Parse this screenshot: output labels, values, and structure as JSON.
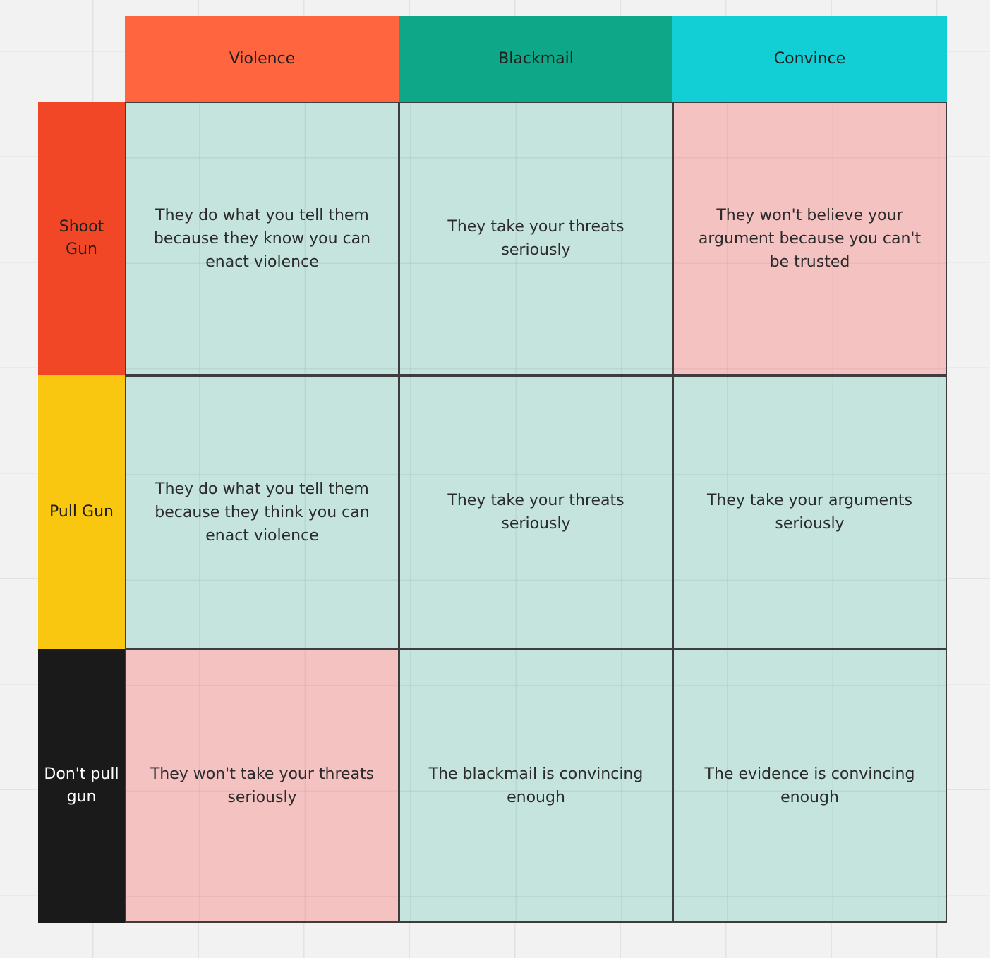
{
  "colors": {
    "canvas_bg": "#f2f2f2",
    "col_violence": "#ff6640",
    "col_blackmail": "#0ea788",
    "col_convince": "#12ced5",
    "row_shoot": "#f24726",
    "row_pull": "#fac710",
    "row_dont": "#1a1a1a",
    "cell_green": "#c4e4dd",
    "cell_red": "#f5c2c2"
  },
  "columns": [
    {
      "label": "Violence"
    },
    {
      "label": "Blackmail"
    },
    {
      "label": "Convince"
    }
  ],
  "rows": [
    {
      "label": "Shoot Gun",
      "cells": [
        {
          "text": "They do what you tell them because they know you can enact violence",
          "tone": "green"
        },
        {
          "text": "They take your threats seriously",
          "tone": "green"
        },
        {
          "text": "They won't believe your argument because you can't be trusted",
          "tone": "red"
        }
      ]
    },
    {
      "label": "Pull Gun",
      "cells": [
        {
          "text": "They do what you tell them because they think you can enact violence",
          "tone": "green"
        },
        {
          "text": "They take your threats seriously",
          "tone": "green"
        },
        {
          "text": "They take your arguments seriously",
          "tone": "green"
        }
      ]
    },
    {
      "label": "Don't pull gun",
      "cells": [
        {
          "text": "They won't take your threats seriously",
          "tone": "red"
        },
        {
          "text": "The blackmail is convincing enough",
          "tone": "green"
        },
        {
          "text": "The evidence is convincing enough",
          "tone": "green"
        }
      ]
    }
  ]
}
